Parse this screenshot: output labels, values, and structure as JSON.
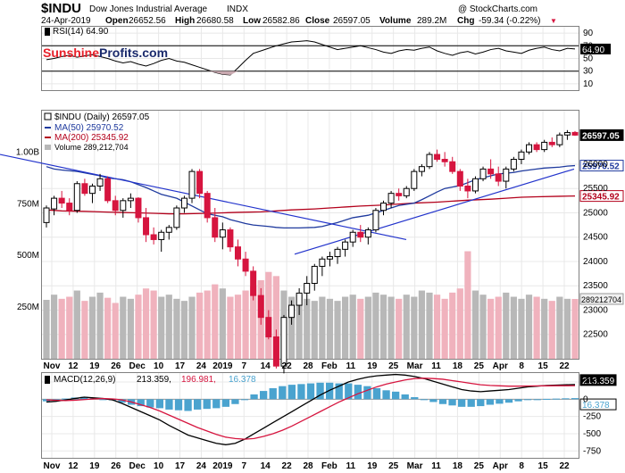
{
  "header": {
    "symbol": "$INDU",
    "name": "Dow Jones Industrial Average",
    "exchange": "INDX",
    "source": "@ StockCharts.com",
    "date": "24-Apr-2019",
    "open_label": "Open",
    "open": "26652.56",
    "high_label": "High",
    "high": "26680.58",
    "low_label": "Low",
    "low": "26582.86",
    "close_label": "Close",
    "close": "26597.05",
    "volume_label": "Volume",
    "volume": "289.2M",
    "chg_label": "Chg",
    "chg": "-59.34 (-0.22%)",
    "chg_arrow": "▼"
  },
  "watermark": {
    "part1": "Sunshine",
    "part2": "Profits.com",
    "color1": "#e8202a",
    "color2": "#1a2a6c"
  },
  "colors": {
    "up": "#000000",
    "down": "#d6153f",
    "ma50": "#1f3a9e",
    "ma200": "#b3001b",
    "trendline": "#2233cc",
    "vol_up": "#b8b8b8",
    "vol_down": "#f0b2bd",
    "macd": "#000000",
    "signal": "#d6153f",
    "hist": "#4aa3cf"
  },
  "chart_data": [
    {
      "type": "line",
      "title": "RSI(14) 64.90",
      "series": [
        {
          "name": "RSI(14)",
          "values": [
            48,
            50,
            53,
            55,
            52,
            54,
            56,
            53,
            50,
            46,
            43,
            45,
            41,
            38,
            42,
            47,
            50,
            46,
            44,
            40,
            36,
            32,
            28,
            25,
            24,
            35,
            47,
            58,
            62,
            66,
            70,
            73,
            76,
            77,
            78,
            76,
            72,
            68,
            64,
            66,
            68,
            70,
            67,
            64,
            60,
            58,
            62,
            64,
            63,
            66,
            68,
            62,
            58,
            55,
            59,
            61,
            57,
            60,
            64,
            66,
            62,
            60,
            58,
            63,
            66,
            68,
            64,
            62,
            66,
            64.9
          ]
        }
      ],
      "yticks": [
        10,
        30,
        50,
        70,
        90
      ],
      "ylim": [
        0,
        100
      ],
      "reference_lines": [
        30,
        70
      ],
      "last_value": "64.90"
    },
    {
      "type": "candlestick",
      "title": "$INDU (Daily) 26597.05",
      "ylim": [
        22000,
        27100
      ],
      "yticks": [
        22500,
        23000,
        23500,
        24000,
        24500,
        25000,
        25500,
        26000
      ],
      "x_labels": [
        "Nov",
        "12",
        "19",
        "26",
        "Dec",
        "10",
        "17",
        "24",
        "2019",
        "7",
        "14",
        "22",
        "28",
        "Feb",
        "11",
        "19",
        "25",
        "Mar",
        "11",
        "18",
        "25",
        "Apr",
        "8",
        "15",
        "22"
      ],
      "candles": [
        [
          24800,
          25150,
          24700,
          25100
        ],
        [
          25080,
          25350,
          24950,
          25300
        ],
        [
          25300,
          25450,
          25100,
          25200
        ],
        [
          25200,
          25300,
          24950,
          25050
        ],
        [
          25050,
          25650,
          25000,
          25600
        ],
        [
          25600,
          25700,
          25350,
          25400
        ],
        [
          25400,
          25600,
          25200,
          25550
        ],
        [
          25550,
          25800,
          25450,
          25700
        ],
        [
          25700,
          25750,
          25200,
          25250
        ],
        [
          25250,
          25350,
          24950,
          25050
        ],
        [
          25050,
          25300,
          24900,
          25250
        ],
        [
          25250,
          25400,
          25100,
          25300
        ],
        [
          25300,
          25320,
          24800,
          24900
        ],
        [
          24900,
          25100,
          24400,
          24550
        ],
        [
          24550,
          24700,
          24350,
          24450
        ],
        [
          24450,
          24650,
          24200,
          24600
        ],
        [
          24600,
          24750,
          24450,
          24700
        ],
        [
          24700,
          25150,
          24650,
          25100
        ],
        [
          25100,
          25350,
          25000,
          25300
        ],
        [
          25300,
          25900,
          25200,
          25850
        ],
        [
          25850,
          25900,
          25300,
          25400
        ],
        [
          25400,
          25450,
          24800,
          24900
        ],
        [
          24900,
          25100,
          24400,
          24500
        ],
        [
          24500,
          24800,
          24250,
          24650
        ],
        [
          24650,
          24700,
          24200,
          24300
        ],
        [
          24300,
          24450,
          23900,
          24050
        ],
        [
          24050,
          24200,
          23700,
          23800
        ],
        [
          23800,
          23900,
          23200,
          23300
        ],
        [
          23300,
          23450,
          22700,
          22850
        ],
        [
          22850,
          23000,
          22400,
          22450
        ],
        [
          22450,
          22600,
          21800,
          21850
        ],
        [
          21850,
          22900,
          21700,
          22850
        ],
        [
          22850,
          23200,
          22700,
          23100
        ],
        [
          23100,
          23450,
          22900,
          23350
        ],
        [
          23350,
          23700,
          23100,
          23550
        ],
        [
          23550,
          23950,
          23400,
          23900
        ],
        [
          23900,
          24100,
          23700,
          24050
        ],
        [
          24050,
          24200,
          23900,
          24100
        ],
        [
          24100,
          24300,
          23950,
          24250
        ],
        [
          24250,
          24450,
          24100,
          24400
        ],
        [
          24400,
          24650,
          24300,
          24600
        ],
        [
          24600,
          24750,
          24400,
          24500
        ],
        [
          24500,
          24700,
          24350,
          24650
        ],
        [
          24650,
          25100,
          24600,
          25050
        ],
        [
          25050,
          25250,
          24950,
          25200
        ],
        [
          25200,
          25450,
          25100,
          25400
        ],
        [
          25400,
          25500,
          25250,
          25350
        ],
        [
          25350,
          25550,
          25300,
          25500
        ],
        [
          25500,
          25900,
          25450,
          25850
        ],
        [
          25850,
          26000,
          25750,
          25950
        ],
        [
          25950,
          26250,
          25900,
          26200
        ],
        [
          26200,
          26300,
          26050,
          26100
        ],
        [
          26100,
          26250,
          25950,
          26050
        ],
        [
          26050,
          26150,
          25800,
          25850
        ],
        [
          25850,
          25900,
          25450,
          25550
        ],
        [
          25550,
          25700,
          25300,
          25450
        ],
        [
          25450,
          25750,
          25400,
          25700
        ],
        [
          25700,
          25950,
          25650,
          25900
        ],
        [
          25900,
          26100,
          25700,
          25800
        ],
        [
          25800,
          25950,
          25550,
          25650
        ],
        [
          25650,
          25950,
          25500,
          25900
        ],
        [
          25900,
          26150,
          25850,
          26100
        ],
        [
          26100,
          26300,
          26000,
          26250
        ],
        [
          26250,
          26450,
          26200,
          26400
        ],
        [
          26400,
          26450,
          26250,
          26300
        ],
        [
          26300,
          26500,
          26250,
          26450
        ],
        [
          26450,
          26550,
          26350,
          26400
        ],
        [
          26400,
          26650,
          26350,
          26600
        ],
        [
          26600,
          26700,
          26500,
          26650
        ],
        [
          26652.56,
          26680.58,
          26582.86,
          26597.05
        ]
      ],
      "ma50": [
        25950,
        25900,
        25880,
        25850,
        25820,
        25790,
        25760,
        25720,
        25680,
        25640,
        25580,
        25520,
        25450,
        25380,
        25300,
        25220,
        25140,
        25060,
        24980,
        24920,
        24860,
        24820,
        24780,
        24750,
        24720,
        24700,
        24690,
        24690,
        24690,
        24700,
        24720,
        24760,
        24800,
        24850,
        24900,
        24950,
        25000,
        25050,
        25100,
        25150,
        25200,
        25270,
        25350,
        25430,
        25500,
        25560,
        25620,
        25680,
        25720,
        25760,
        25800,
        25830,
        25860,
        25880,
        25900,
        25920,
        25940,
        25960,
        25970.52
      ],
      "ma200": [
        25060,
        25040,
        25030,
        25020,
        25010,
        25000,
        24990,
        24980,
        24980,
        24990,
        25000,
        25010,
        25020,
        25040,
        25060,
        25080,
        25100,
        25120,
        25140,
        25160,
        25180,
        25200,
        25220,
        25240,
        25260,
        25280,
        25300,
        25320,
        25330,
        25340,
        25345.92
      ],
      "trendlines": [
        {
          "from": [
            "Nov",
            26200
          ],
          "to": [
            "Mar 11",
            24450
          ]
        },
        {
          "from": [
            "Jan 22",
            24150
          ],
          "to": [
            "Apr 24",
            25900
          ]
        }
      ],
      "legend": [
        {
          "label": "$INDU (Daily) 26597.05",
          "color": "#000000"
        },
        {
          "label": "MA(50) 25970.52",
          "color": "#1f3a9e"
        },
        {
          "label": "MA(200) 25345.92",
          "color": "#b3001b"
        },
        {
          "label": "Volume 289,212,704",
          "color": "#b8b8b8"
        }
      ],
      "price_labels": [
        {
          "text": "26597.05",
          "value": 26597.05,
          "style": "dark"
        },
        {
          "text": "25970.52",
          "value": 25970.52,
          "style": "blue"
        },
        {
          "text": "25345.92",
          "value": 25345.92,
          "style": "red"
        }
      ]
    },
    {
      "type": "bar",
      "title": "Volume",
      "values_m": [
        285,
        310,
        290,
        300,
        330,
        280,
        300,
        320,
        295,
        270,
        300,
        290,
        310,
        340,
        330,
        300,
        310,
        290,
        280,
        300,
        320,
        330,
        360,
        340,
        300,
        310,
        330,
        350,
        380,
        420,
        400,
        330,
        300,
        310,
        290,
        280,
        300,
        290,
        280,
        300,
        310,
        290,
        300,
        320,
        310,
        300,
        290,
        310,
        300,
        330,
        320,
        310,
        290,
        320,
        340,
        520,
        330,
        310,
        290,
        300,
        320,
        300,
        290,
        310,
        300,
        290,
        280,
        300,
        290,
        289.2
      ],
      "yticks": [
        "250M",
        "500M",
        "750M",
        "1.00B"
      ],
      "tick_values_m": [
        250,
        500,
        750,
        1000
      ],
      "ylim_m": [
        0,
        1200
      ],
      "last_label": "289212704"
    },
    {
      "type": "line",
      "title": "MACD(12,26,9) 213.359, 196.981, 16.378",
      "legend": [
        {
          "label": "MACD(12,26,9)",
          "color": "#000000"
        },
        {
          "label": "213.359,",
          "color": "#000000"
        },
        {
          "label": "196.981,",
          "color": "#d6153f"
        },
        {
          "label": "16.378",
          "color": "#4aa3cf"
        }
      ],
      "series": [
        {
          "name": "MACD",
          "values": [
            -40,
            -30,
            -10,
            10,
            30,
            20,
            10,
            -10,
            -60,
            -120,
            -180,
            -240,
            -300,
            -380,
            -450,
            -520,
            -560,
            -600,
            -640,
            -660,
            -640,
            -580,
            -500,
            -420,
            -340,
            -260,
            -180,
            -100,
            -20,
            60,
            130,
            190,
            250,
            290,
            320,
            340,
            350,
            360,
            350,
            330,
            300,
            260,
            220,
            180,
            140,
            120,
            110,
            120,
            130,
            140,
            160,
            180,
            190,
            200,
            205,
            210,
            213.359
          ]
        },
        {
          "name": "Signal",
          "values": [
            -10,
            -15,
            -20,
            -15,
            -5,
            5,
            10,
            5,
            -10,
            -40,
            -80,
            -120,
            -170,
            -230,
            -290,
            -350,
            -410,
            -460,
            -510,
            -550,
            -570,
            -580,
            -570,
            -540,
            -500,
            -450,
            -390,
            -320,
            -250,
            -180,
            -110,
            -40,
            20,
            80,
            130,
            180,
            220,
            250,
            280,
            300,
            305,
            300,
            290,
            270,
            250,
            230,
            210,
            200,
            195,
            190,
            190,
            192,
            194,
            195,
            196,
            196.5,
            196.981
          ]
        }
      ],
      "histogram": [
        -30,
        -15,
        10,
        25,
        35,
        15,
        0,
        -15,
        -50,
        -80,
        -100,
        -120,
        -130,
        -150,
        -160,
        -170,
        -150,
        -140,
        -130,
        -110,
        -70,
        0,
        70,
        120,
        160,
        190,
        210,
        220,
        230,
        240,
        240,
        230,
        230,
        210,
        190,
        160,
        130,
        110,
        70,
        30,
        -5,
        -40,
        -70,
        -90,
        -110,
        -110,
        -100,
        -80,
        -65,
        -50,
        -30,
        -12,
        -4,
        5,
        9,
        13.5,
        16.378
      ],
      "yticks": [
        -750,
        -500,
        -250,
        0,
        250
      ],
      "ylim": [
        -850,
        380
      ],
      "price_labels": [
        {
          "text": "213.359",
          "value": 213.359,
          "style": "dark"
        },
        {
          "text": "16.378",
          "value": 16.378,
          "style": "blue"
        }
      ]
    }
  ]
}
